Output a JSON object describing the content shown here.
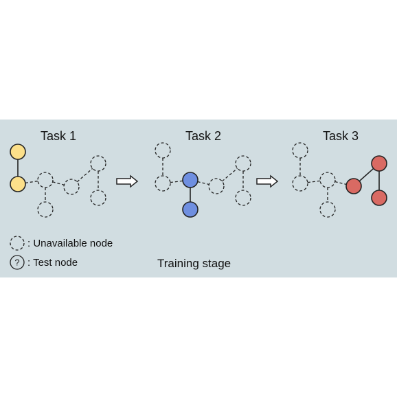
{
  "tasks": [
    {
      "title": "Task 1",
      "color": "#fce08a"
    },
    {
      "title": "Task 2",
      "color": "#6f8fe0"
    },
    {
      "title": "Task 3",
      "color": "#d96a63"
    }
  ],
  "legend": {
    "unavailable_label": ": Unavailable node",
    "test_label": ": Test node",
    "test_symbol": "?"
  },
  "stage_label": "Training stage",
  "colors": {
    "panel_background": "#d1dde1",
    "stroke": "#222222"
  },
  "icons": [
    "right-arrow-icon",
    "unavailable-node-icon",
    "test-node-icon"
  ]
}
